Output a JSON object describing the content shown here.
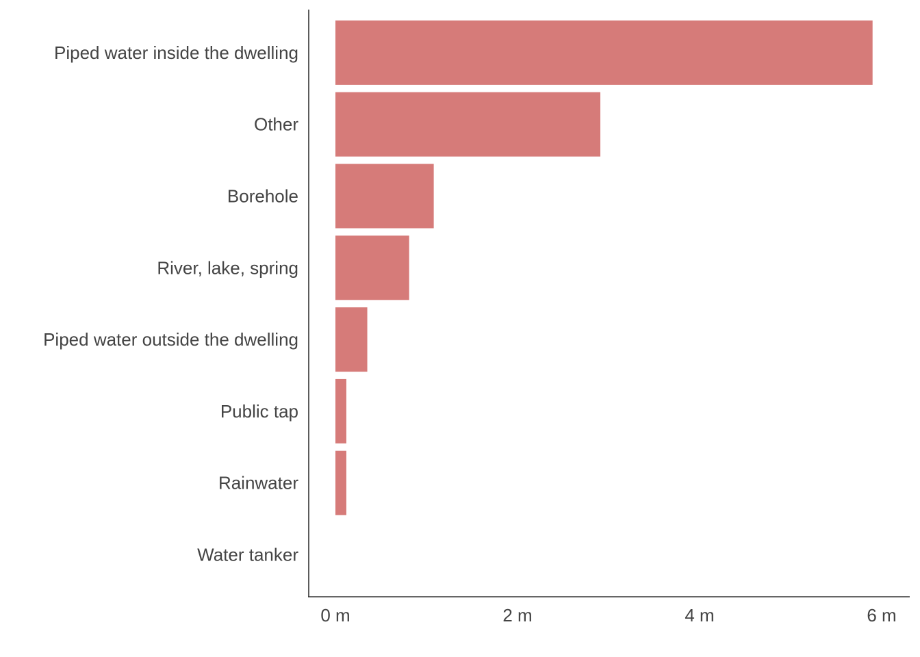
{
  "chart_data": {
    "type": "bar",
    "orientation": "horizontal",
    "categories": [
      "Piped water inside the dwelling",
      "Other",
      "Borehole",
      "River, lake, spring",
      "Piped water outside the dwelling",
      "Public tap",
      "Rainwater",
      "Water tanker"
    ],
    "values": [
      5.9,
      2.91,
      1.08,
      0.81,
      0.35,
      0.12,
      0.12,
      0
    ],
    "value_unit": "millions",
    "xlim": [
      0,
      6
    ],
    "x_ticks": [
      0,
      2,
      4,
      6
    ],
    "x_tick_labels": [
      "0 m",
      "2 m",
      "4 m",
      "6 m"
    ],
    "title": "",
    "xlabel": "",
    "ylabel": "",
    "bar_color": "#d67b79",
    "grid": false,
    "legend": "none"
  }
}
